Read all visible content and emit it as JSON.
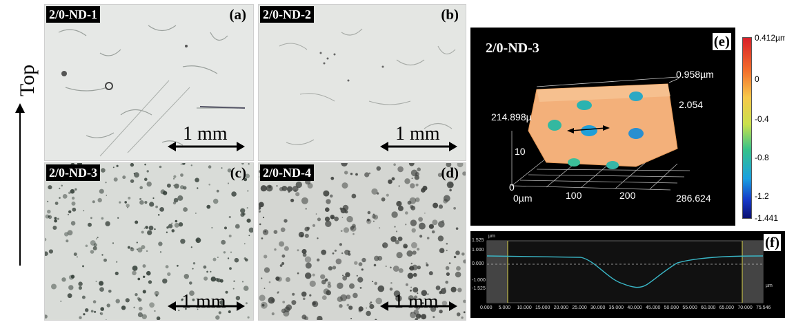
{
  "side_label": {
    "text": "Top"
  },
  "panels": {
    "a": {
      "tag": "2/0-ND-1",
      "letter": "(a)",
      "scale": "1 mm"
    },
    "b": {
      "tag": "2/0-ND-2",
      "letter": "(b)",
      "scale": "1 mm"
    },
    "c": {
      "tag": "2/0-ND-3",
      "letter": "(c)",
      "scale": "1 mm"
    },
    "d": {
      "tag": "2/0-ND-4",
      "letter": "(d)",
      "scale": "1 mm"
    },
    "e": {
      "tag": "2/0-ND-3",
      "letter": "(e)",
      "z_top": "0.958µm",
      "y_mid": "2.054",
      "y_val": "214.898µ",
      "y_ten": "10",
      "z_zero": "0",
      "x_zero": "0µm",
      "x_100": "100",
      "x_200": "200",
      "x_max": "286.624"
    },
    "f": {
      "letter": "(f)",
      "unit_top": "µm",
      "unit_right": "µm",
      "y_ticks": [
        "1.525",
        "1.000",
        "0.000",
        "-1.000",
        "-1.525"
      ],
      "x_ticks": [
        "0.000",
        "5.000",
        "10.000",
        "15.000",
        "20.000",
        "25.000",
        "30.000",
        "35.000",
        "40.000",
        "45.000",
        "50.000",
        "55.000",
        "60.000",
        "65.000",
        "70.000",
        "75.546"
      ]
    }
  },
  "colorbar": {
    "labels": [
      "0.412µm",
      "0",
      "-0.4",
      "-0.8",
      "-1.2",
      "-1.441"
    ]
  },
  "colors": {
    "surface_peak": "#f3b07a",
    "surface_low": "#2b9ee0",
    "profile_line": "#3ab7c7",
    "profile_band": "#d9d24a"
  }
}
